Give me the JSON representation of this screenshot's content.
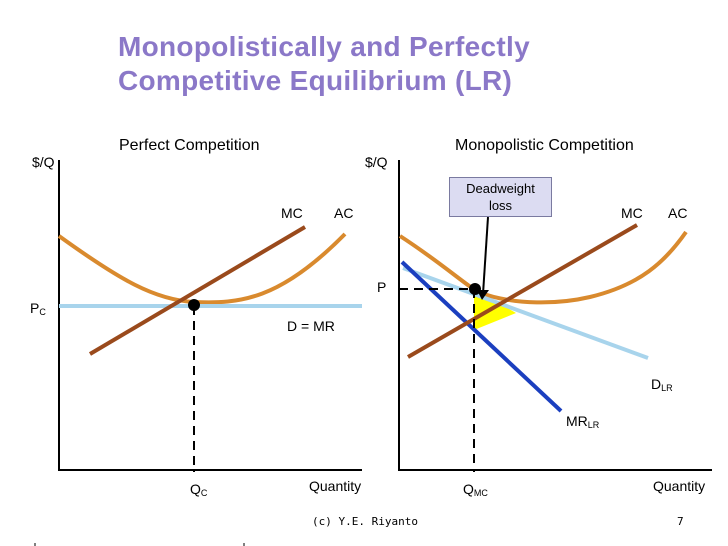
{
  "slide": {
    "title_line1": "Monopolistically and Perfectly",
    "title_line2": "Competitive Equilibrium (LR)",
    "footer_credit": "(c) Y.E. Riyanto",
    "page_number": "7"
  },
  "left_panel": {
    "title": "Perfect Competition",
    "y_axis_label": "$/Q",
    "x_axis_label": "Quantity",
    "mc_label": "MC",
    "ac_label": "AC",
    "demand_label": "D = MR",
    "price_label": "P",
    "price_sub": "C",
    "quantity_label": "Q",
    "quantity_sub": "C"
  },
  "right_panel": {
    "title": "Monopolistic Competition",
    "y_axis_label": "$/Q",
    "x_axis_label": "Quantity",
    "mc_label": "MC",
    "ac_label": "AC",
    "demand_label": "D",
    "demand_sub": "LR",
    "mr_label": "MR",
    "mr_sub": "LR",
    "price_label": "P",
    "quantity_label": "Q",
    "quantity_sub": "MC",
    "callout_line1": "Deadweight",
    "callout_line2": "loss"
  },
  "colors": {
    "title": "#8b78c8",
    "mc_curve": "#9a4a1c",
    "ac_curve": "#d98a2e",
    "demand_curve": "#a8d4ec",
    "mr_curve": "#1b3fbf",
    "deadweight_fill": "#ffff00",
    "callout_bg": "#dcdcf2"
  }
}
